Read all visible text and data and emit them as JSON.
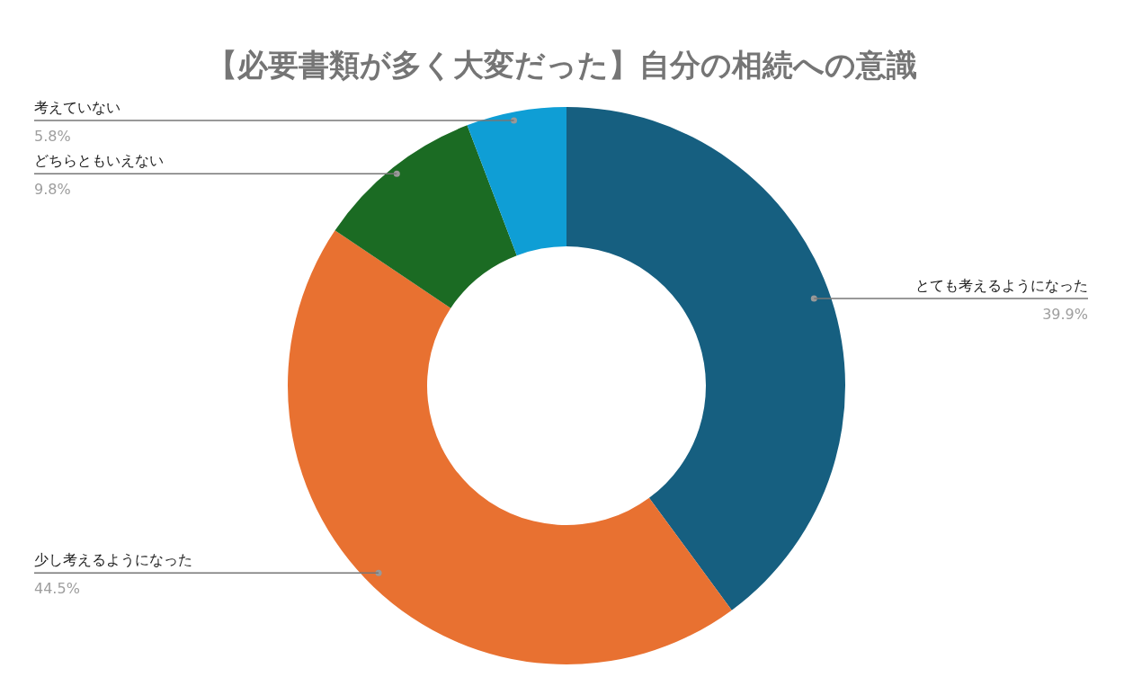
{
  "chart_data": {
    "type": "donut",
    "title": "【必要書類が多く大変だった】自分の相続への意識",
    "categories": [
      "とても考えるようになった",
      "少し考えるようになった",
      "どちらともいえない",
      "考えていない"
    ],
    "values": [
      39.9,
      44.5,
      9.8,
      5.8
    ],
    "colors": [
      "#165f80",
      "#e87131",
      "#1b6b23",
      "#0f9ed5"
    ],
    "value_labels": [
      "39.9%",
      "44.5%",
      "9.8%",
      "5.8%"
    ],
    "legend": false
  }
}
